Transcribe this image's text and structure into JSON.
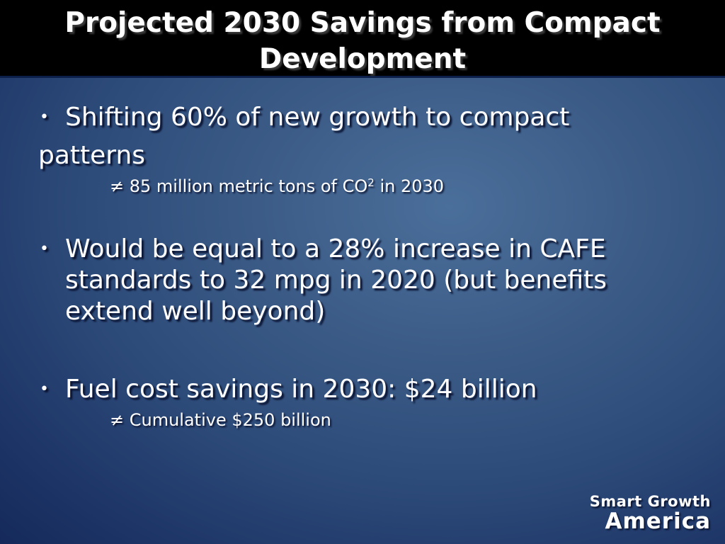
{
  "slide": {
    "title": "Projected 2030 Savings from Compact Development",
    "bullets": [
      {
        "text_line1": "Shifting 60% of new growth to compact",
        "text_line2": "patterns",
        "sub": {
          "marker": "≠",
          "text_before": "85 million metric tons of CO",
          "superscript": "2",
          "text_after": "in 2030"
        }
      },
      {
        "text": "Would be equal to a 28% increase in CAFE standards to 32 mpg in 2020 (but benefits extend well beyond)"
      },
      {
        "text": "Fuel cost savings in 2030: $24 billion",
        "sub": {
          "marker": "≠",
          "text": "Cumulative $250 billion"
        }
      }
    ],
    "bullet_marker": "•",
    "logo": {
      "line1": "Smart Growth",
      "line2": "America"
    }
  }
}
